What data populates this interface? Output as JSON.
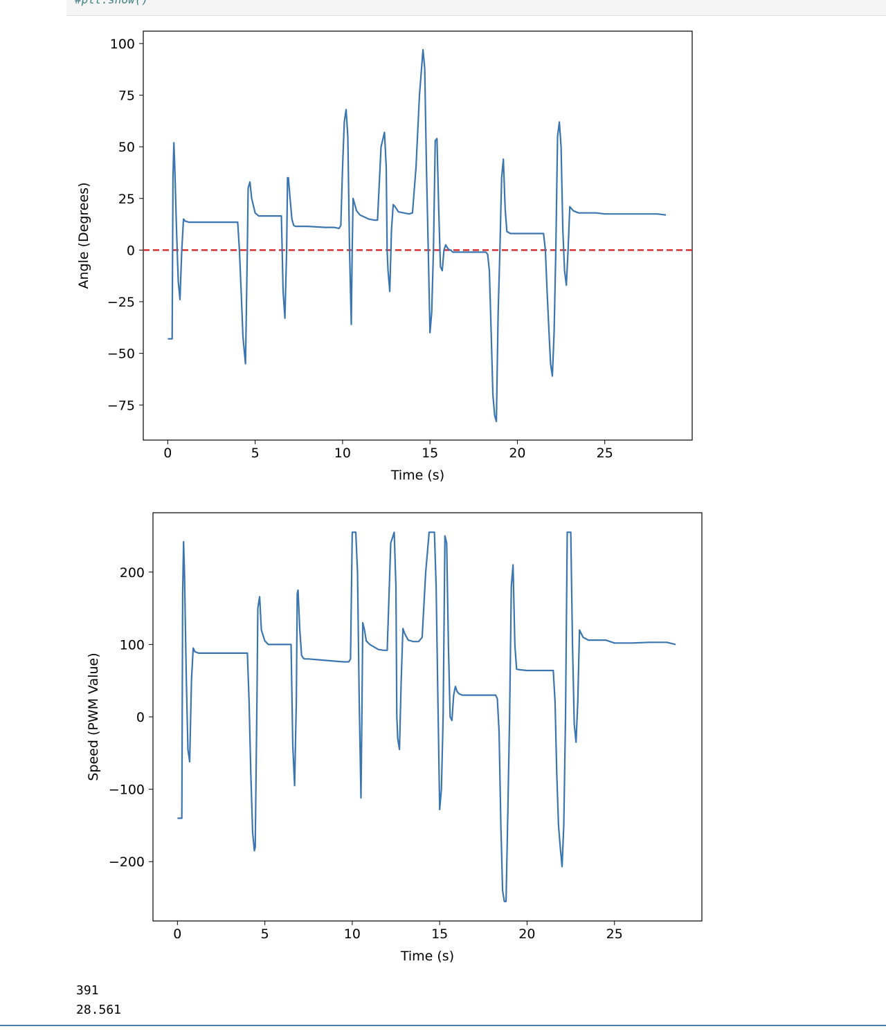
{
  "code_cell": {
    "code_line": "#plt.show()"
  },
  "stdout_lines": [
    "391",
    "28.561"
  ],
  "colors": {
    "line": "#3a75b0",
    "reference_line": "#d62728"
  },
  "chart_data": [
    {
      "type": "line",
      "title": "",
      "xlabel": "Time (s)",
      "ylabel": "Angle (Degrees)",
      "xlim": [
        -1.4,
        30.0
      ],
      "ylim": [
        -92,
        106
      ],
      "xticks": [
        0,
        5,
        10,
        15,
        20,
        25
      ],
      "yticks": [
        -75,
        -50,
        -25,
        0,
        25,
        50,
        75,
        100
      ],
      "grid": false,
      "reference_line": {
        "y": 0,
        "style": "dashed"
      },
      "series": [
        {
          "x": [
            0.0,
            0.2,
            0.25,
            0.3,
            0.35,
            0.4,
            0.5,
            0.6,
            0.7,
            0.8,
            0.9,
            1.0,
            1.2,
            2.0,
            3.0,
            4.0,
            4.1,
            4.2,
            4.3,
            4.4,
            4.45,
            4.55,
            4.6,
            4.7,
            4.8,
            5.0,
            5.2,
            5.5,
            6.0,
            6.5,
            6.6,
            6.7,
            6.8,
            6.85,
            6.9,
            7.0,
            7.1,
            7.2,
            7.3,
            7.5,
            8.0,
            9.0,
            9.5,
            9.8,
            9.9,
            10.0,
            10.1,
            10.2,
            10.3,
            10.4,
            10.5,
            10.55,
            10.6,
            10.7,
            10.8,
            11.0,
            11.5,
            11.8,
            12.0,
            12.2,
            12.4,
            12.5,
            12.55,
            12.6,
            12.7,
            12.8,
            12.9,
            13.0,
            13.2,
            13.5,
            13.8,
            14.0,
            14.2,
            14.4,
            14.6,
            14.7,
            14.8,
            14.9,
            15.0,
            15.1,
            15.2,
            15.3,
            15.4,
            15.5,
            15.6,
            15.7,
            15.8,
            15.9,
            16.0,
            16.1,
            16.2,
            16.3,
            16.5,
            17.0,
            17.5,
            18.0,
            18.2,
            18.3,
            18.4,
            18.5,
            18.6,
            18.7,
            18.8,
            18.9,
            19.0,
            19.1,
            19.2,
            19.3,
            19.4,
            19.6,
            20.0,
            20.5,
            21.0,
            21.5,
            21.6,
            21.7,
            21.8,
            21.9,
            22.0,
            22.1,
            22.2,
            22.3,
            22.4,
            22.5,
            22.6,
            22.7,
            22.8,
            22.9,
            23.0,
            23.2,
            23.5,
            24.0,
            24.5,
            25.0,
            26.0,
            27.0,
            28.0,
            28.5
          ],
          "y": [
            -43,
            -43,
            -43,
            35,
            52,
            40,
            10,
            -15,
            -24,
            0,
            15,
            14,
            13.5,
            13.5,
            13.5,
            13.5,
            0,
            -20,
            -42,
            -51,
            -55,
            0,
            30,
            33,
            25,
            18,
            16.5,
            16.5,
            16.5,
            16.5,
            -20,
            -33,
            0,
            35,
            35,
            25,
            15,
            12,
            11.5,
            11.5,
            11.5,
            11,
            11,
            10.5,
            12,
            40,
            62,
            68,
            55,
            0,
            -36,
            0,
            25,
            22,
            19,
            17,
            15,
            14.5,
            14.5,
            50,
            57,
            40,
            0,
            -10,
            -20,
            10,
            22,
            21,
            18.5,
            18,
            17.5,
            18,
            40,
            75,
            97,
            88,
            40,
            0,
            -40,
            -30,
            0,
            53,
            54,
            20,
            -8,
            -10,
            0,
            2.5,
            1,
            0,
            0,
            -1,
            -1,
            -1,
            -1,
            -1,
            -1,
            -2,
            -10,
            -40,
            -70,
            -80,
            -83,
            -30,
            0,
            35,
            44,
            20,
            9,
            8,
            8,
            8,
            8,
            8,
            0,
            -20,
            -38,
            -55,
            -61,
            -40,
            0,
            55,
            62,
            50,
            10,
            -10,
            -17,
            0,
            21,
            19,
            18,
            18,
            18,
            17.5,
            17.5,
            17.5,
            17.5,
            17
          ]
        }
      ]
    },
    {
      "type": "line",
      "title": "",
      "xlabel": "Time (s)",
      "ylabel": "Speed (PWM Value)",
      "xlim": [
        -1.4,
        30.0
      ],
      "ylim": [
        -282,
        282
      ],
      "xticks": [
        0,
        5,
        10,
        15,
        20,
        25
      ],
      "yticks": [
        -200,
        -100,
        0,
        100,
        200
      ],
      "grid": false,
      "series": [
        {
          "x": [
            0.0,
            0.2,
            0.25,
            0.3,
            0.35,
            0.4,
            0.5,
            0.6,
            0.7,
            0.8,
            0.9,
            1.0,
            1.2,
            2.0,
            3.0,
            4.0,
            4.1,
            4.2,
            4.3,
            4.4,
            4.45,
            4.55,
            4.6,
            4.7,
            4.8,
            5.0,
            5.2,
            5.5,
            6.0,
            6.5,
            6.6,
            6.7,
            6.8,
            6.85,
            6.9,
            7.0,
            7.1,
            7.2,
            7.3,
            7.5,
            8.0,
            9.0,
            9.5,
            9.8,
            9.9,
            10.0,
            10.1,
            10.2,
            10.3,
            10.4,
            10.5,
            10.55,
            10.6,
            10.7,
            10.8,
            11.0,
            11.5,
            11.8,
            12.0,
            12.2,
            12.4,
            12.5,
            12.55,
            12.6,
            12.7,
            12.8,
            12.9,
            13.0,
            13.2,
            13.5,
            13.8,
            14.0,
            14.2,
            14.4,
            14.6,
            14.7,
            14.8,
            14.9,
            15.0,
            15.1,
            15.2,
            15.3,
            15.4,
            15.5,
            15.6,
            15.7,
            15.8,
            15.9,
            16.0,
            16.1,
            16.2,
            16.3,
            16.5,
            17.0,
            17.5,
            18.0,
            18.2,
            18.3,
            18.4,
            18.5,
            18.6,
            18.7,
            18.8,
            18.9,
            19.0,
            19.1,
            19.2,
            19.3,
            19.4,
            19.6,
            20.0,
            20.5,
            21.0,
            21.5,
            21.6,
            21.7,
            21.8,
            21.9,
            22.0,
            22.1,
            22.2,
            22.3,
            22.4,
            22.5,
            22.6,
            22.7,
            22.8,
            22.9,
            23.0,
            23.2,
            23.5,
            24.0,
            24.5,
            25.0,
            26.0,
            27.0,
            28.0,
            28.5
          ],
          "y": [
            -140,
            -140,
            -140,
            170,
            242,
            200,
            60,
            -45,
            -62,
            50,
            95,
            90,
            88,
            88,
            88,
            88,
            20,
            -80,
            -160,
            -185,
            -180,
            30,
            150,
            166,
            120,
            105,
            100,
            100,
            100,
            100,
            -40,
            -95,
            20,
            170,
            175,
            120,
            85,
            81,
            80,
            80,
            79,
            77,
            76,
            76,
            80,
            255,
            255,
            255,
            200,
            20,
            -112,
            0,
            130,
            120,
            105,
            100,
            93,
            92,
            92,
            240,
            255,
            180,
            0,
            -30,
            -45,
            50,
            122,
            115,
            106,
            104,
            104,
            110,
            200,
            255,
            255,
            255,
            180,
            20,
            -128,
            -100,
            0,
            250,
            240,
            100,
            0,
            -5,
            30,
            42,
            35,
            32,
            31,
            30,
            30,
            30,
            30,
            30,
            30,
            25,
            -20,
            -150,
            -240,
            -255,
            -255,
            -130,
            0,
            180,
            210,
            100,
            66,
            65,
            64,
            64,
            64,
            64,
            20,
            -80,
            -150,
            -180,
            -207,
            -150,
            0,
            255,
            255,
            255,
            100,
            -10,
            -35,
            20,
            120,
            110,
            106,
            106,
            106,
            102,
            102,
            103,
            103,
            100
          ]
        }
      ]
    }
  ]
}
